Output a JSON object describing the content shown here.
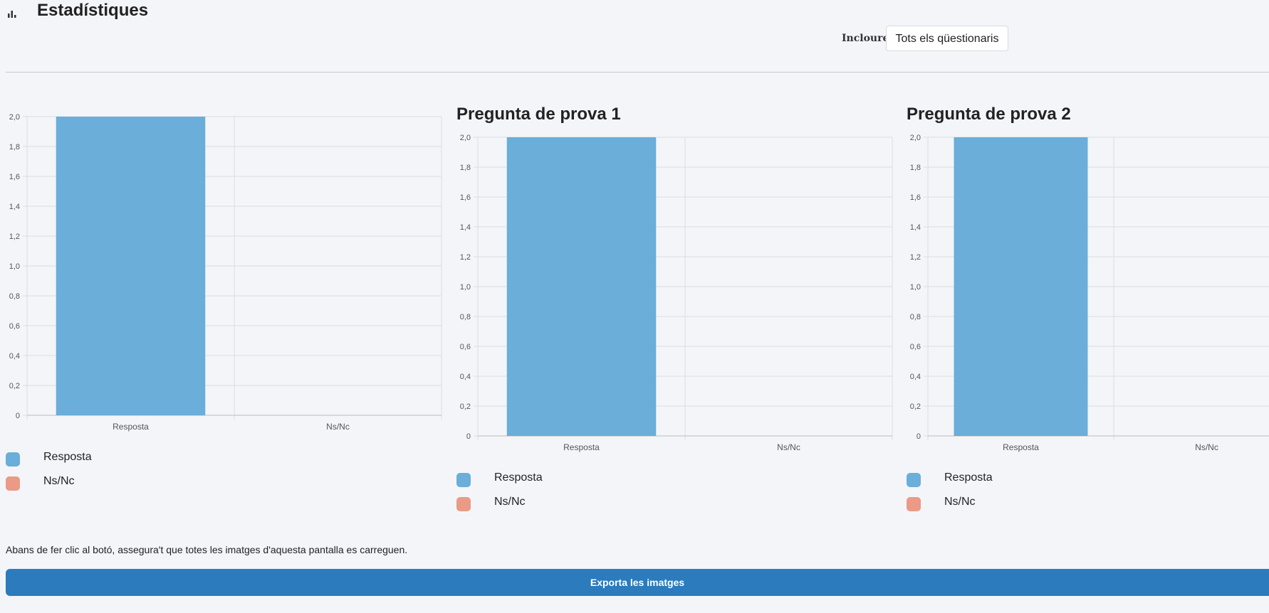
{
  "header": {
    "icon": "bar-chart-icon",
    "title": "Estadístiques",
    "include_label": "Incloure:",
    "include_select_value": "Tots els qüestionaris"
  },
  "legend_labels": [
    "Resposta",
    "Ns/Nc"
  ],
  "colors": {
    "resposta": "#6aaed9",
    "nsnc": "#ea9a85",
    "export_button": "#2b7bbd",
    "grid": "#dddddd"
  },
  "chart_data": [
    {
      "type": "bar",
      "title": "",
      "categories": [
        "Resposta",
        "Ns/Nc"
      ],
      "values": [
        2.0,
        0
      ],
      "ylim": [
        0,
        2.0
      ],
      "yticks": [
        "0",
        "0,2",
        "0,4",
        "0,6",
        "0,8",
        "1,0",
        "1,2",
        "1,4",
        "1,6",
        "1,8",
        "2,0"
      ],
      "grid": true,
      "legend": "bottom-left"
    },
    {
      "type": "bar",
      "title": "Pregunta de prova 1",
      "categories": [
        "Resposta",
        "Ns/Nc"
      ],
      "values": [
        2.0,
        0
      ],
      "ylim": [
        0,
        2.0
      ],
      "yticks": [
        "0",
        "0,2",
        "0,4",
        "0,6",
        "0,8",
        "1,0",
        "1,2",
        "1,4",
        "1,6",
        "1,8",
        "2,0"
      ],
      "grid": true,
      "legend": "bottom-left"
    },
    {
      "type": "bar",
      "title": "Pregunta de prova 2",
      "categories": [
        "Resposta",
        "Ns/Nc"
      ],
      "values": [
        2.0,
        0
      ],
      "ylim": [
        0,
        2.0
      ],
      "yticks": [
        "0",
        "0,2",
        "0,4",
        "0,6",
        "0,8",
        "1,0",
        "1,2",
        "1,4",
        "1,6",
        "1,8",
        "2,0"
      ],
      "grid": true,
      "legend": "bottom-left"
    }
  ],
  "footer": {
    "note": "Abans de fer clic al botó, assegura't que totes les imatges d'aquesta pantalla es carreguen.",
    "export_label": "Exporta les imatges"
  }
}
